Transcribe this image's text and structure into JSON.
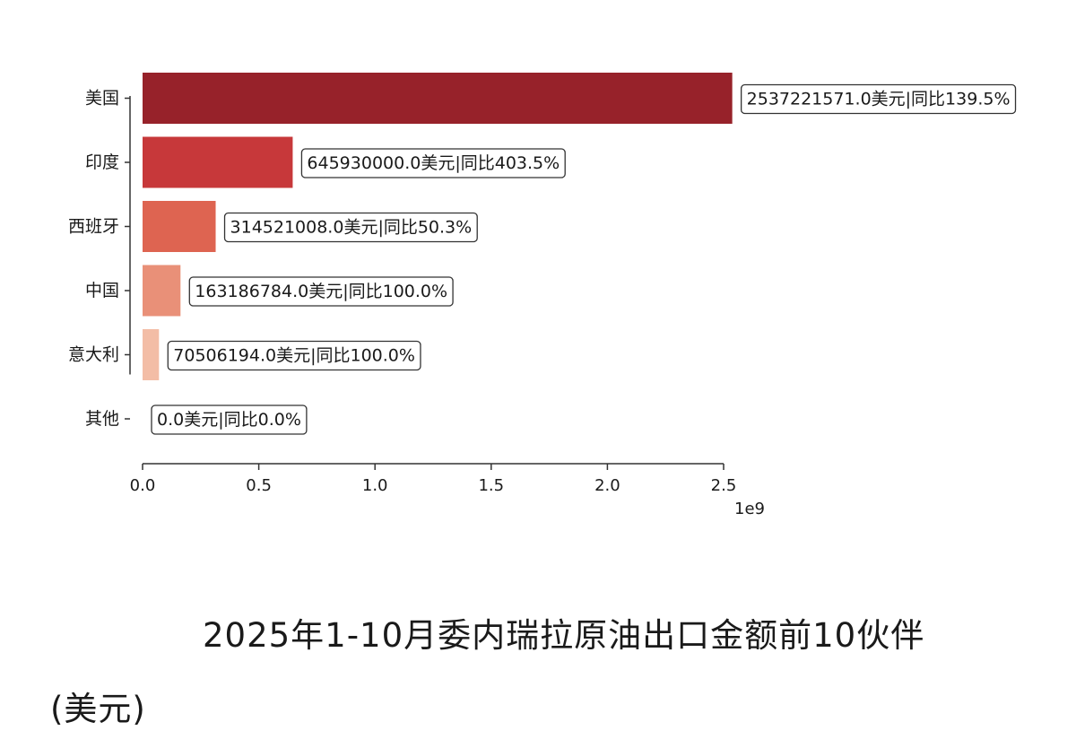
{
  "chart_data": {
    "type": "bar",
    "orientation": "horizontal",
    "categories": [
      "美国",
      "印度",
      "西班牙",
      "中国",
      "意大利",
      "其他"
    ],
    "values": [
      2537221571.0,
      645930000.0,
      314521008.0,
      163186784.0,
      70506194.0,
      0.0
    ],
    "data_labels": [
      "2537221571.0美元|同比139.5%",
      "645930000.0美元|同比403.5%",
      "314521008.0美元|同比50.3%",
      "163186784.0美元|同比100.0%",
      "70506194.0美元|同比100.0%",
      "0.0美元|同比0.0%"
    ],
    "colors": [
      "#97222a",
      "#c7383a",
      "#de6451",
      "#e99078",
      "#f3bda6",
      "#f7d9cb"
    ],
    "xlim": [
      0,
      2550000000.0
    ],
    "x_ticks": [
      0,
      500000000.0,
      1000000000.0,
      1500000000.0,
      2000000000.0,
      2500000000.0
    ],
    "x_tick_labels": [
      "0.0",
      "0.5",
      "1.0",
      "1.5",
      "2.0",
      "2.5"
    ],
    "x_offset_label": "1e9",
    "xlabel": "",
    "ylabel": "",
    "grid": false,
    "legend": "none",
    "title": "2025年1-10月委内瑞拉原油出口金额前10伙伴",
    "title_suffix": "(美元)"
  }
}
